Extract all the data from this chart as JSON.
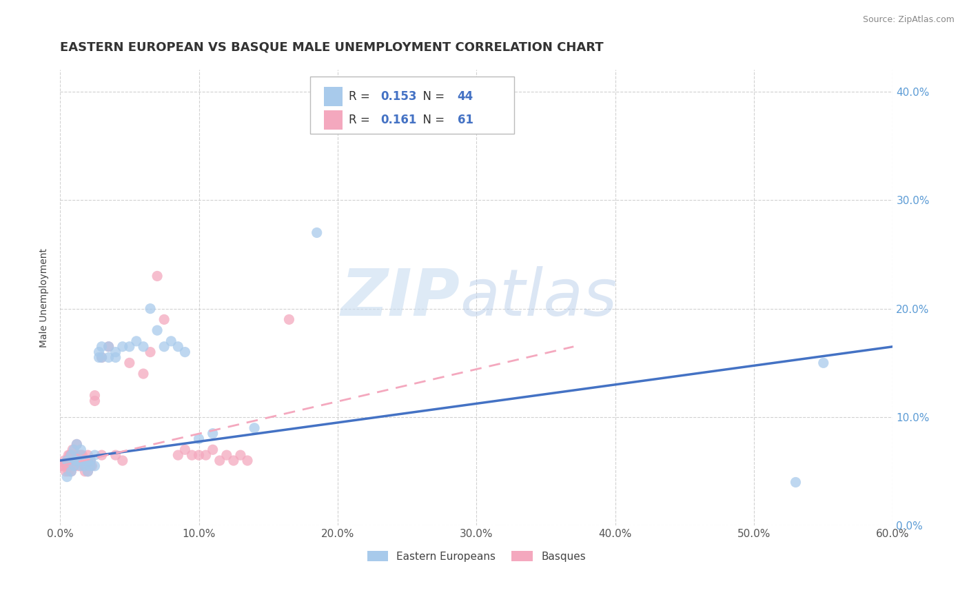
{
  "title": "EASTERN EUROPEAN VS BASQUE MALE UNEMPLOYMENT CORRELATION CHART",
  "source": "Source: ZipAtlas.com",
  "ylabel": "Male Unemployment",
  "xlim": [
    0.0,
    0.6
  ],
  "ylim": [
    0.0,
    0.42
  ],
  "xtick_vals": [
    0.0,
    0.1,
    0.2,
    0.3,
    0.4,
    0.5,
    0.6
  ],
  "ytick_vals": [
    0.0,
    0.1,
    0.2,
    0.3,
    0.4
  ],
  "blue_color": "#A8CAEB",
  "pink_color": "#F4A8BE",
  "blue_line_color": "#4472C4",
  "pink_line_color": "#F4A8BE",
  "r_blue": 0.153,
  "n_blue": 44,
  "r_pink": 0.161,
  "n_pink": 61,
  "watermark_zip": "ZIP",
  "watermark_atlas": "atlas",
  "legend_labels": [
    "Eastern Europeans",
    "Basques"
  ],
  "blue_scatter_x": [
    0.005,
    0.005,
    0.008,
    0.008,
    0.01,
    0.01,
    0.01,
    0.012,
    0.012,
    0.015,
    0.015,
    0.015,
    0.018,
    0.018,
    0.02,
    0.02,
    0.022,
    0.022,
    0.025,
    0.025,
    0.028,
    0.028,
    0.03,
    0.03,
    0.035,
    0.035,
    0.04,
    0.04,
    0.045,
    0.05,
    0.055,
    0.06,
    0.065,
    0.07,
    0.075,
    0.08,
    0.085,
    0.09,
    0.1,
    0.11,
    0.14,
    0.185,
    0.53,
    0.55
  ],
  "blue_scatter_y": [
    0.045,
    0.06,
    0.05,
    0.065,
    0.06,
    0.055,
    0.07,
    0.06,
    0.075,
    0.06,
    0.055,
    0.07,
    0.06,
    0.055,
    0.06,
    0.05,
    0.06,
    0.055,
    0.065,
    0.055,
    0.155,
    0.16,
    0.155,
    0.165,
    0.155,
    0.165,
    0.16,
    0.155,
    0.165,
    0.165,
    0.17,
    0.165,
    0.2,
    0.18,
    0.165,
    0.17,
    0.165,
    0.16,
    0.08,
    0.085,
    0.09,
    0.27,
    0.04,
    0.15
  ],
  "pink_scatter_x": [
    0.0,
    0.002,
    0.003,
    0.004,
    0.005,
    0.005,
    0.006,
    0.006,
    0.006,
    0.007,
    0.007,
    0.008,
    0.008,
    0.008,
    0.009,
    0.009,
    0.01,
    0.01,
    0.01,
    0.011,
    0.012,
    0.012,
    0.013,
    0.013,
    0.014,
    0.015,
    0.015,
    0.016,
    0.017,
    0.018,
    0.018,
    0.019,
    0.02,
    0.02,
    0.02,
    0.022,
    0.023,
    0.025,
    0.025,
    0.03,
    0.03,
    0.035,
    0.04,
    0.045,
    0.05,
    0.06,
    0.065,
    0.07,
    0.075,
    0.085,
    0.09,
    0.095,
    0.1,
    0.105,
    0.11,
    0.115,
    0.12,
    0.125,
    0.13,
    0.135,
    0.165
  ],
  "pink_scatter_y": [
    0.055,
    0.055,
    0.06,
    0.05,
    0.06,
    0.055,
    0.065,
    0.06,
    0.05,
    0.065,
    0.055,
    0.065,
    0.06,
    0.05,
    0.07,
    0.06,
    0.065,
    0.06,
    0.055,
    0.065,
    0.075,
    0.065,
    0.065,
    0.055,
    0.065,
    0.065,
    0.06,
    0.065,
    0.055,
    0.06,
    0.05,
    0.06,
    0.065,
    0.06,
    0.05,
    0.06,
    0.055,
    0.115,
    0.12,
    0.155,
    0.065,
    0.165,
    0.065,
    0.06,
    0.15,
    0.14,
    0.16,
    0.23,
    0.19,
    0.065,
    0.07,
    0.065,
    0.065,
    0.065,
    0.07,
    0.06,
    0.065,
    0.06,
    0.065,
    0.06,
    0.19
  ],
  "blue_line_x": [
    0.0,
    0.6
  ],
  "blue_line_y": [
    0.06,
    0.165
  ],
  "pink_line_x": [
    0.0,
    0.37
  ],
  "pink_line_y": [
    0.055,
    0.165
  ],
  "title_fontsize": 13,
  "axis_label_fontsize": 10,
  "tick_fontsize": 11,
  "source_fontsize": 9,
  "legend_fontsize": 12
}
